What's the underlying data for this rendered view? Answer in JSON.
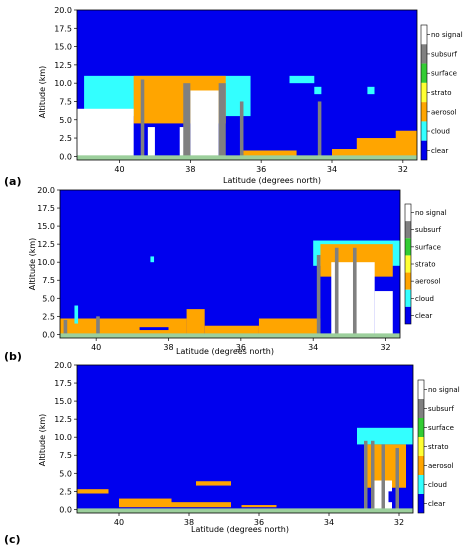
{
  "colors": {
    "clear": "#0000ee",
    "cloud": "#33ffff",
    "aerosol": "#ffa500",
    "strato": "#ffff33",
    "surface": "#33cc33",
    "subsurf": "#808080",
    "nosignal": "#ffffff",
    "grid_green": "#9ccf9c"
  },
  "chart_data": [
    {
      "type": "heatmap",
      "panel_label": "(a)",
      "xlabel": "Latitude (degrees north)",
      "ylabel": "Altitude (km)",
      "xlim": [
        41.2,
        31.6
      ],
      "ylim": [
        -0.5,
        20.0
      ],
      "xticks": [
        "40",
        "38",
        "36",
        "34",
        "32"
      ],
      "xtick_values": [
        40,
        38,
        36,
        34,
        32
      ],
      "yticks": [
        "0.0",
        "2.5",
        "5.0",
        "7.5",
        "10.0",
        "12.5",
        "15.0",
        "17.5",
        "20.0"
      ],
      "ytick_values": [
        0,
        2.5,
        5,
        7.5,
        10,
        12.5,
        15,
        17.5,
        20
      ],
      "legend": [
        "no signal",
        "subsurf",
        "surface",
        "strato",
        "aerosol",
        "cloud",
        "clear"
      ],
      "features": [
        {
          "class": "cloud",
          "lat0": 41.0,
          "lat1": 36.3,
          "alt0": 5.5,
          "alt1": 11.0
        },
        {
          "class": "aerosol",
          "lat0": 39.6,
          "lat1": 37.0,
          "alt0": 4.5,
          "alt1": 11.0
        },
        {
          "class": "nosignal",
          "lat0": 41.2,
          "lat1": 39.6,
          "alt0": 0.0,
          "alt1": 6.5
        },
        {
          "class": "nosignal",
          "lat0": 38.0,
          "lat1": 37.2,
          "alt0": 0.0,
          "alt1": 9.0
        },
        {
          "class": "nosignal",
          "lat0": 39.2,
          "lat1": 39.0,
          "alt0": 0.0,
          "alt1": 4.0
        },
        {
          "class": "nosignal",
          "lat0": 38.3,
          "lat1": 38.1,
          "alt0": 0.0,
          "alt1": 4.0
        },
        {
          "class": "subsurf",
          "lat0": 39.4,
          "lat1": 39.3,
          "alt0": 0.0,
          "alt1": 10.5
        },
        {
          "class": "subsurf",
          "lat0": 38.2,
          "lat1": 38.0,
          "alt0": 0.0,
          "alt1": 10.0
        },
        {
          "class": "subsurf",
          "lat0": 37.2,
          "lat1": 37.0,
          "alt0": 0.0,
          "alt1": 10.0
        },
        {
          "class": "subsurf",
          "lat0": 36.6,
          "lat1": 36.5,
          "alt0": 0.0,
          "alt1": 7.5
        },
        {
          "class": "subsurf",
          "lat0": 34.4,
          "lat1": 34.3,
          "alt0": 0.0,
          "alt1": 7.5
        },
        {
          "class": "cloud",
          "lat0": 35.2,
          "lat1": 34.5,
          "alt0": 10.0,
          "alt1": 11.0
        },
        {
          "class": "cloud",
          "lat0": 34.5,
          "lat1": 34.3,
          "alt0": 8.5,
          "alt1": 9.5
        },
        {
          "class": "cloud",
          "lat0": 33.0,
          "lat1": 32.8,
          "alt0": 8.5,
          "alt1": 9.5
        },
        {
          "class": "aerosol",
          "lat0": 36.5,
          "lat1": 35.0,
          "alt0": 0.0,
          "alt1": 0.8
        },
        {
          "class": "aerosol",
          "lat0": 34.0,
          "lat1": 32.5,
          "alt0": 0.0,
          "alt1": 1.0
        },
        {
          "class": "aerosol",
          "lat0": 33.3,
          "lat1": 31.6,
          "alt0": 0.0,
          "alt1": 2.5
        },
        {
          "class": "aerosol",
          "lat0": 32.2,
          "lat1": 31.6,
          "alt0": 0.0,
          "alt1": 3.5
        }
      ]
    },
    {
      "type": "heatmap",
      "panel_label": "(b)",
      "xlabel": "Latitude (degrees north)",
      "ylabel": "Altitude (km)",
      "xlim": [
        41.0,
        31.6
      ],
      "ylim": [
        -0.5,
        20.0
      ],
      "xticks": [
        "40",
        "38",
        "36",
        "34",
        "32"
      ],
      "xtick_values": [
        40,
        38,
        36,
        34,
        32
      ],
      "yticks": [
        "0.0",
        "2.5",
        "5.0",
        "7.5",
        "10.0",
        "12.5",
        "15.0",
        "17.5",
        "20.0"
      ],
      "ytick_values": [
        0,
        2.5,
        5,
        7.5,
        10,
        12.5,
        15,
        17.5,
        20
      ],
      "legend": [
        "no signal",
        "subsurf",
        "surface",
        "strato",
        "aerosol",
        "cloud",
        "clear"
      ],
      "features": [
        {
          "class": "aerosol",
          "lat0": 41.0,
          "lat1": 37.5,
          "alt0": 0.0,
          "alt1": 2.2
        },
        {
          "class": "aerosol",
          "lat0": 37.5,
          "lat1": 37.0,
          "alt0": 0.0,
          "alt1": 3.5
        },
        {
          "class": "aerosol",
          "lat0": 37.0,
          "lat1": 35.5,
          "alt0": 0.0,
          "alt1": 1.2
        },
        {
          "class": "aerosol",
          "lat0": 35.5,
          "lat1": 33.8,
          "alt0": 0.0,
          "alt1": 2.2
        },
        {
          "class": "clear",
          "lat0": 38.8,
          "lat1": 38.0,
          "alt0": 0.6,
          "alt1": 1.0
        },
        {
          "class": "cloud",
          "lat0": 40.6,
          "lat1": 40.5,
          "alt0": 1.5,
          "alt1": 4.0
        },
        {
          "class": "cloud",
          "lat0": 38.5,
          "lat1": 38.4,
          "alt0": 10.0,
          "alt1": 10.8
        },
        {
          "class": "cloud",
          "lat0": 34.0,
          "lat1": 31.6,
          "alt0": 9.5,
          "alt1": 13.0
        },
        {
          "class": "aerosol",
          "lat0": 33.8,
          "lat1": 31.8,
          "alt0": 8.0,
          "alt1": 12.5
        },
        {
          "class": "nosignal",
          "lat0": 33.5,
          "lat1": 32.3,
          "alt0": 0.0,
          "alt1": 10.0
        },
        {
          "class": "nosignal",
          "lat0": 32.3,
          "lat1": 31.8,
          "alt0": 0.0,
          "alt1": 6.0
        },
        {
          "class": "subsurf",
          "lat0": 33.9,
          "lat1": 33.8,
          "alt0": 0.0,
          "alt1": 11.0
        },
        {
          "class": "subsurf",
          "lat0": 33.4,
          "lat1": 33.3,
          "alt0": 0.0,
          "alt1": 12.0
        },
        {
          "class": "subsurf",
          "lat0": 32.9,
          "lat1": 32.8,
          "alt0": 0.0,
          "alt1": 12.0
        },
        {
          "class": "subsurf",
          "lat0": 40.0,
          "lat1": 39.9,
          "alt0": 0.0,
          "alt1": 2.5
        },
        {
          "class": "subsurf",
          "lat0": 40.9,
          "lat1": 40.8,
          "alt0": 0.0,
          "alt1": 2.0
        }
      ]
    },
    {
      "type": "heatmap",
      "panel_label": "(c)",
      "xlabel": "Latitude (degrees north)",
      "ylabel": "Altitude (km)",
      "xlim": [
        41.2,
        31.6
      ],
      "ylim": [
        -0.5,
        20.0
      ],
      "xticks": [
        "40",
        "38",
        "36",
        "34",
        "32"
      ],
      "xtick_values": [
        40,
        38,
        36,
        34,
        32
      ],
      "yticks": [
        "0.0",
        "2.5",
        "5.0",
        "7.5",
        "10.0",
        "12.5",
        "15.0",
        "17.5",
        "20.0"
      ],
      "ytick_values": [
        0,
        2.5,
        5,
        7.5,
        10,
        12.5,
        15,
        17.5,
        20
      ],
      "legend": [
        "no signal",
        "subsurf",
        "surface",
        "strato",
        "aerosol",
        "cloud",
        "clear"
      ],
      "features": [
        {
          "class": "aerosol",
          "lat0": 41.2,
          "lat1": 40.3,
          "alt0": 2.2,
          "alt1": 2.8
        },
        {
          "class": "aerosol",
          "lat0": 40.0,
          "lat1": 38.5,
          "alt0": 0.3,
          "alt1": 1.5
        },
        {
          "class": "aerosol",
          "lat0": 38.5,
          "lat1": 36.8,
          "alt0": 0.3,
          "alt1": 1.0
        },
        {
          "class": "aerosol",
          "lat0": 37.8,
          "lat1": 36.8,
          "alt0": 3.3,
          "alt1": 3.9
        },
        {
          "class": "aerosol",
          "lat0": 36.5,
          "lat1": 35.5,
          "alt0": 0.3,
          "alt1": 0.6
        },
        {
          "class": "cloud",
          "lat0": 33.2,
          "lat1": 31.6,
          "alt0": 9.0,
          "alt1": 11.3
        },
        {
          "class": "aerosol",
          "lat0": 33.0,
          "lat1": 31.8,
          "alt0": 3.0,
          "alt1": 9.0
        },
        {
          "class": "nosignal",
          "lat0": 32.7,
          "lat1": 32.2,
          "alt0": 0.0,
          "alt1": 4.0
        },
        {
          "class": "subsurf",
          "lat0": 33.0,
          "lat1": 32.9,
          "alt0": 0.0,
          "alt1": 9.5
        },
        {
          "class": "subsurf",
          "lat0": 32.8,
          "lat1": 32.7,
          "alt0": 0.0,
          "alt1": 9.5
        },
        {
          "class": "subsurf",
          "lat0": 32.5,
          "lat1": 32.4,
          "alt0": 0.0,
          "alt1": 9.0
        },
        {
          "class": "subsurf",
          "lat0": 32.1,
          "lat1": 32.0,
          "alt0": 0.0,
          "alt1": 8.5
        },
        {
          "class": "clear",
          "lat0": 32.3,
          "lat1": 32.1,
          "alt0": 1.0,
          "alt1": 2.5
        }
      ]
    }
  ]
}
